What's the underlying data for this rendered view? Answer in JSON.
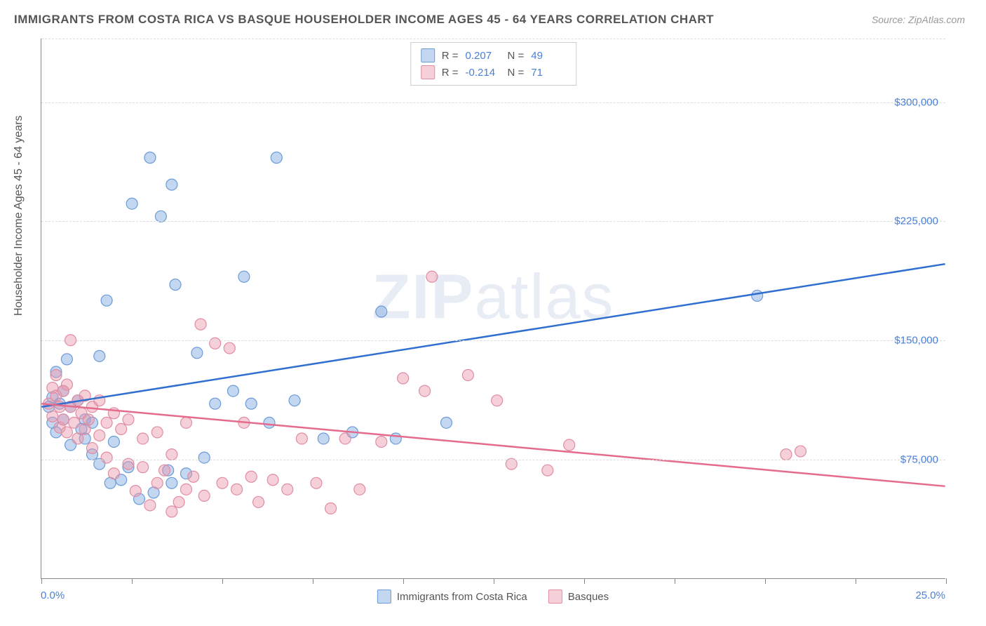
{
  "title": "IMMIGRANTS FROM COSTA RICA VS BASQUE HOUSEHOLDER INCOME AGES 45 - 64 YEARS CORRELATION CHART",
  "source": "Source: ZipAtlas.com",
  "watermark_a": "ZIP",
  "watermark_b": "atlas",
  "y_axis_label": "Householder Income Ages 45 - 64 years",
  "chart": {
    "type": "scatter",
    "xlim": [
      0,
      25
    ],
    "ylim": [
      0,
      340000
    ],
    "y_ticks": [
      75000,
      150000,
      225000,
      300000
    ],
    "y_tick_labels": [
      "$75,000",
      "$150,000",
      "$225,000",
      "$300,000"
    ],
    "x_tick_positions": [
      0,
      2.5,
      5,
      7.5,
      10,
      12.5,
      15,
      17.5,
      20,
      22.5,
      25
    ],
    "x_left_label": "0.0%",
    "x_right_label": "25.0%",
    "grid_color": "#dddddd",
    "background_color": "#ffffff",
    "marker_radius": 8,
    "line_width": 2.5,
    "series": [
      {
        "name": "Immigrants from Costa Rica",
        "color_fill": "rgba(122,166,224,0.45)",
        "color_stroke": "#6b9bd8",
        "line_color": "#2f6fd0",
        "R": "0.207",
        "N": "49",
        "trend": {
          "x1": 0,
          "y1": 108000,
          "x2": 25,
          "y2": 198000
        },
        "points": [
          [
            0.2,
            108000
          ],
          [
            0.3,
            98000
          ],
          [
            0.3,
            114000
          ],
          [
            0.4,
            130000
          ],
          [
            0.4,
            92000
          ],
          [
            0.5,
            110000
          ],
          [
            0.6,
            100000
          ],
          [
            0.6,
            118000
          ],
          [
            0.7,
            138000
          ],
          [
            0.8,
            84000
          ],
          [
            0.8,
            108000
          ],
          [
            1.0,
            112000
          ],
          [
            1.1,
            94000
          ],
          [
            1.2,
            88000
          ],
          [
            1.2,
            100000
          ],
          [
            1.4,
            78000
          ],
          [
            1.4,
            98000
          ],
          [
            1.6,
            72000
          ],
          [
            1.6,
            140000
          ],
          [
            1.8,
            175000
          ],
          [
            1.9,
            60000
          ],
          [
            2.0,
            86000
          ],
          [
            2.2,
            62000
          ],
          [
            2.4,
            70000
          ],
          [
            2.5,
            236000
          ],
          [
            2.7,
            50000
          ],
          [
            3.0,
            265000
          ],
          [
            3.1,
            54000
          ],
          [
            3.3,
            228000
          ],
          [
            3.5,
            68000
          ],
          [
            3.6,
            248000
          ],
          [
            3.6,
            60000
          ],
          [
            3.7,
            185000
          ],
          [
            4.0,
            66000
          ],
          [
            4.3,
            142000
          ],
          [
            4.5,
            76000
          ],
          [
            4.8,
            110000
          ],
          [
            5.3,
            118000
          ],
          [
            5.6,
            190000
          ],
          [
            5.8,
            110000
          ],
          [
            6.3,
            98000
          ],
          [
            6.5,
            265000
          ],
          [
            7.0,
            112000
          ],
          [
            7.8,
            88000
          ],
          [
            8.6,
            92000
          ],
          [
            9.4,
            168000
          ],
          [
            9.8,
            88000
          ],
          [
            11.2,
            98000
          ],
          [
            19.8,
            178000
          ]
        ]
      },
      {
        "name": "Basques",
        "color_fill": "rgba(235,150,170,0.45)",
        "color_stroke": "#e08ca3",
        "line_color": "#e56b8c",
        "R": "-0.214",
        "N": "71",
        "trend": {
          "x1": 0,
          "y1": 110000,
          "x2": 25,
          "y2": 58000
        },
        "points": [
          [
            0.2,
            110000
          ],
          [
            0.3,
            120000
          ],
          [
            0.3,
            102000
          ],
          [
            0.4,
            115000
          ],
          [
            0.4,
            128000
          ],
          [
            0.5,
            108000
          ],
          [
            0.5,
            95000
          ],
          [
            0.6,
            118000
          ],
          [
            0.6,
            100000
          ],
          [
            0.7,
            122000
          ],
          [
            0.7,
            92000
          ],
          [
            0.8,
            150000
          ],
          [
            0.8,
            108000
          ],
          [
            0.9,
            98000
          ],
          [
            1.0,
            112000
          ],
          [
            1.0,
            88000
          ],
          [
            1.1,
            104000
          ],
          [
            1.2,
            115000
          ],
          [
            1.2,
            94000
          ],
          [
            1.3,
            100000
          ],
          [
            1.4,
            82000
          ],
          [
            1.4,
            108000
          ],
          [
            1.6,
            112000
          ],
          [
            1.6,
            90000
          ],
          [
            1.8,
            98000
          ],
          [
            1.8,
            76000
          ],
          [
            2.0,
            104000
          ],
          [
            2.0,
            66000
          ],
          [
            2.2,
            94000
          ],
          [
            2.4,
            72000
          ],
          [
            2.4,
            100000
          ],
          [
            2.6,
            55000
          ],
          [
            2.8,
            70000
          ],
          [
            2.8,
            88000
          ],
          [
            3.0,
            46000
          ],
          [
            3.2,
            60000
          ],
          [
            3.2,
            92000
          ],
          [
            3.4,
            68000
          ],
          [
            3.6,
            42000
          ],
          [
            3.6,
            78000
          ],
          [
            3.8,
            48000
          ],
          [
            4.0,
            56000
          ],
          [
            4.0,
            98000
          ],
          [
            4.2,
            64000
          ],
          [
            4.4,
            160000
          ],
          [
            4.5,
            52000
          ],
          [
            4.8,
            148000
          ],
          [
            5.0,
            60000
          ],
          [
            5.2,
            145000
          ],
          [
            5.4,
            56000
          ],
          [
            5.6,
            98000
          ],
          [
            5.8,
            64000
          ],
          [
            6.0,
            48000
          ],
          [
            6.4,
            62000
          ],
          [
            6.8,
            56000
          ],
          [
            7.2,
            88000
          ],
          [
            7.6,
            60000
          ],
          [
            8.0,
            44000
          ],
          [
            8.4,
            88000
          ],
          [
            8.8,
            56000
          ],
          [
            9.4,
            86000
          ],
          [
            10.0,
            126000
          ],
          [
            10.6,
            118000
          ],
          [
            10.8,
            190000
          ],
          [
            11.8,
            128000
          ],
          [
            12.6,
            112000
          ],
          [
            13.0,
            72000
          ],
          [
            14.0,
            68000
          ],
          [
            14.6,
            84000
          ],
          [
            20.6,
            78000
          ],
          [
            21.0,
            80000
          ]
        ]
      }
    ]
  },
  "stats_labels": {
    "R": "R =",
    "N": "N ="
  },
  "bottom_legend": {
    "items": [
      {
        "label": "Immigrants from Costa Rica",
        "fill": "rgba(122,166,224,0.45)",
        "stroke": "#6b9bd8"
      },
      {
        "label": "Basques",
        "fill": "rgba(235,150,170,0.45)",
        "stroke": "#e08ca3"
      }
    ]
  }
}
